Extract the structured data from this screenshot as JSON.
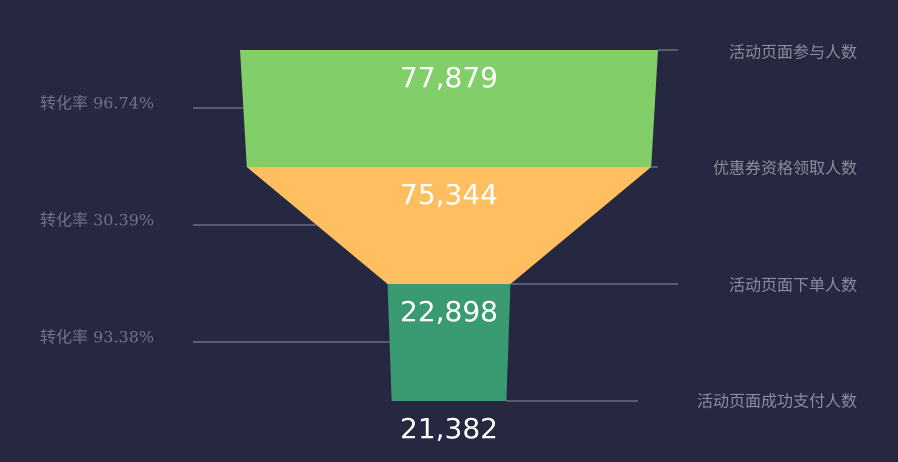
{
  "chart_data": {
    "type": "funnel",
    "stages": [
      {
        "label": "活动页面参与人数",
        "value": 77879,
        "display": "77,879",
        "color": "#82cf6a"
      },
      {
        "label": "优惠券资格领取人数",
        "value": 75344,
        "display": "75,344",
        "color": "#ffbf60"
      },
      {
        "label": "活动页面下单人数",
        "value": 22898,
        "display": "22,898",
        "color": "#3a9a72"
      },
      {
        "label": "活动页面成功支付人数",
        "value": 21382,
        "display": "21,382",
        "color": "#3a9a72"
      }
    ],
    "conversion_rates": [
      {
        "label": "转化率 96.74%",
        "value": 96.74
      },
      {
        "label": "转化率 30.39%",
        "value": 30.39
      },
      {
        "label": "转化率 93.38%",
        "value": 93.38
      }
    ]
  }
}
